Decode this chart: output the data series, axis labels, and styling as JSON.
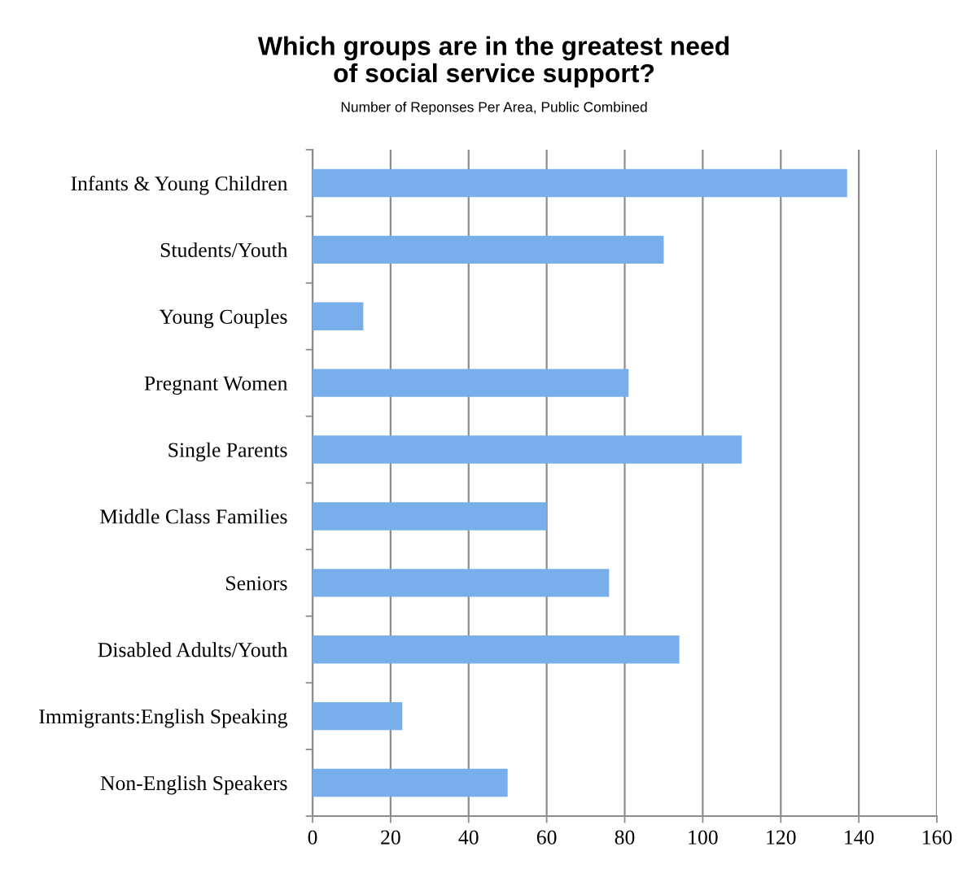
{
  "chart_data": {
    "type": "bar",
    "orientation": "horizontal",
    "title": "Which groups are in the greatest need\nof social service support?",
    "subtitle": "Number of Reponses Per Area, Public Combined",
    "categories": [
      "Infants & Young Children",
      "Students/Youth",
      "Young Couples",
      "Pregnant Women",
      "Single Parents",
      "Middle Class Families",
      "Seniors",
      "Disabled Adults/Youth",
      "Immigrants:English Speaking",
      "Non-English Speakers"
    ],
    "values": [
      137,
      90,
      13,
      81,
      110,
      60,
      76,
      94,
      23,
      50
    ],
    "color": "#78aeea",
    "xlim": [
      0,
      160
    ],
    "xticks": [
      0,
      20,
      40,
      60,
      80,
      100,
      120,
      140,
      160
    ],
    "grid": "x",
    "legend": false
  }
}
